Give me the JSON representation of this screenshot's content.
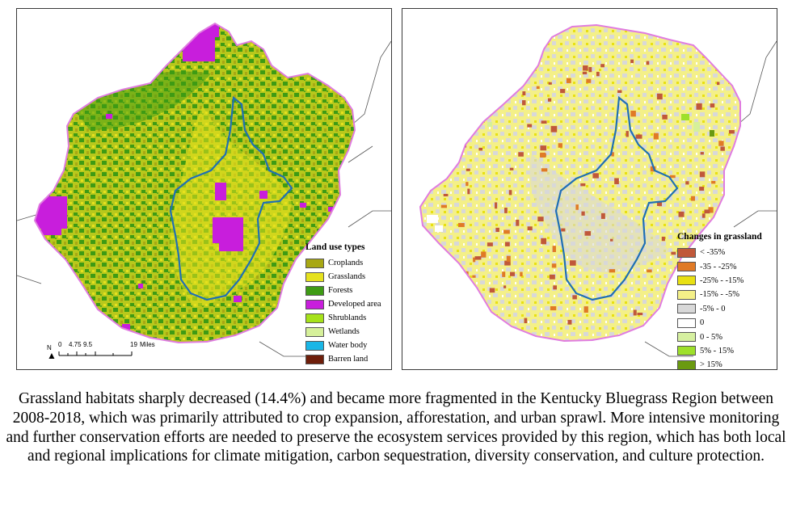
{
  "maps": {
    "left": {
      "legend_title": "Land use types",
      "classes": [
        {
          "label": "Croplands",
          "color": "#a8a814"
        },
        {
          "label": "Grasslands",
          "color": "#e6e21e"
        },
        {
          "label": "Forests",
          "color": "#3e9b14"
        },
        {
          "label": "Developed area",
          "color": "#c81edc"
        },
        {
          "label": "Shrublands",
          "color": "#a6e21a"
        },
        {
          "label": "Wetlands",
          "color": "#d6f09a"
        },
        {
          "label": "Water body",
          "color": "#19b6e6"
        },
        {
          "label": "Barren land",
          "color": "#6e1e0a"
        }
      ],
      "scale": {
        "north": "N",
        "ticks": [
          "0",
          "4.75",
          "9.5",
          "19"
        ],
        "unit": "Miles"
      }
    },
    "right": {
      "legend_title": "Changes in grassland",
      "classes": [
        {
          "label": "< -35%",
          "color": "#c0583a"
        },
        {
          "label": "-35 - -25%",
          "color": "#e07a26"
        },
        {
          "label": "-25% - -15%",
          "color": "#e8e012"
        },
        {
          "label": "-15% - -5%",
          "color": "#f4f088"
        },
        {
          "label": "-5% - 0",
          "color": "#d8d8d8"
        },
        {
          "label": "0",
          "color": "#ffffff"
        },
        {
          "label": "0 - 5%",
          "color": "#d6f0a0"
        },
        {
          "label": "5% - 15%",
          "color": "#9ee02a"
        },
        {
          "label": "> 15%",
          "color": "#6a9a10"
        }
      ]
    },
    "boundary_color": "#e07ce0",
    "inner_region_color": "#1f6fb4"
  },
  "caption": "Grassland habitats sharply decreased (14.4%) and became more fragmented in the Kentucky Bluegrass Region between 2008-2018, which was primarily attributed to crop expansion, afforestation, and urban sprawl. More intensive monitoring and further conservation efforts are needed to preserve the ecosystem services provided by this region, which has both local and regional implications for climate mitigation, carbon sequestration, diversity conservation, and culture protection."
}
